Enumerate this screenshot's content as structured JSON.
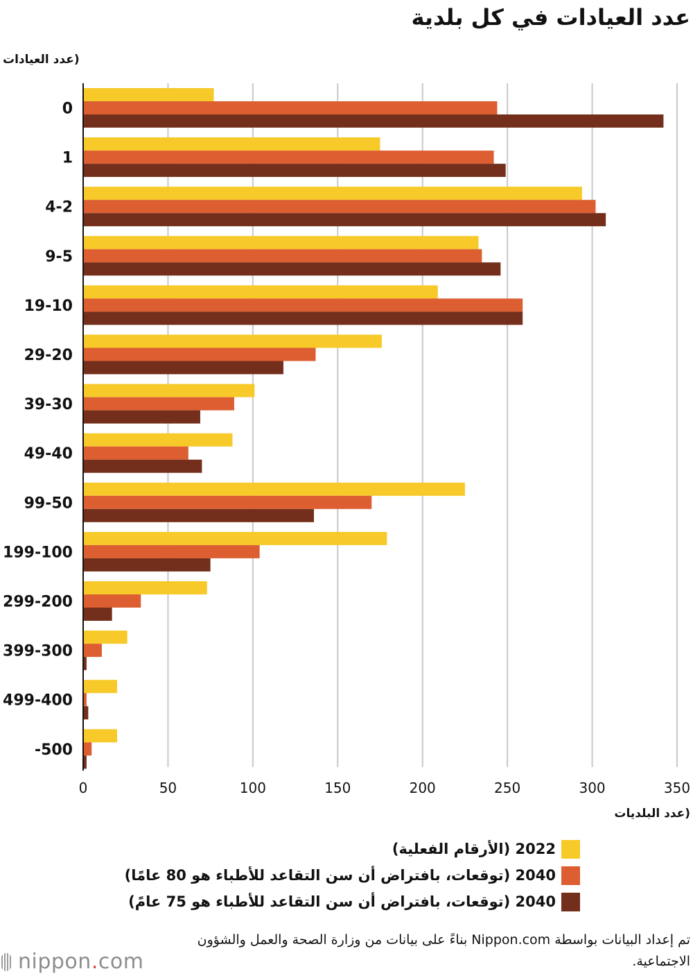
{
  "title": "عدد العيادات في كل بلدية",
  "colors": {
    "series_2022": "#f7c929",
    "series_2040_80": "#dc5e31",
    "series_2040_75": "#732f1b",
    "gridline": "#c8c8c8",
    "axis": "#111111"
  },
  "chart_data": {
    "type": "bar",
    "orientation": "horizontal",
    "title": "عدد العيادات في كل بلدية",
    "ylabel": "(عدد العيادات",
    "xlabel": "(عدد البلديات",
    "categories": [
      "0",
      "1",
      "4-2",
      "9-5",
      "19-10",
      "29-20",
      "39-30",
      "49-40",
      "99-50",
      "199-100",
      "299-200",
      "399-300",
      "499-400",
      "-500"
    ],
    "series": [
      {
        "name": "2022 (الأرقام الفعلية)",
        "color": "#f7c929",
        "values": [
          77,
          175,
          294,
          233,
          209,
          176,
          101,
          88,
          225,
          179,
          73,
          26,
          20,
          20
        ]
      },
      {
        "name": "2040 (توقعات، بافتراض أن سن التقاعد للأطباء هو 80 عامًا)",
        "color": "#dc5e31",
        "values": [
          244,
          242,
          302,
          235,
          259,
          137,
          89,
          62,
          170,
          104,
          34,
          11,
          2,
          5
        ]
      },
      {
        "name": "2040 (توقعات، بافتراض أن سن التقاعد للأطباء هو 75 عامً)",
        "color": "#732f1b",
        "values": [
          342,
          249,
          308,
          246,
          259,
          118,
          69,
          70,
          136,
          75,
          17,
          2,
          3,
          2
        ]
      }
    ],
    "xlim": [
      0,
      350
    ],
    "xticks": [
      0,
      50,
      100,
      150,
      200,
      250,
      300,
      350
    ],
    "grid": true,
    "legend_position": "bottom"
  },
  "legend": [
    {
      "year": "2022",
      "text": "(الأرقام الفعلية)"
    },
    {
      "year": "2040",
      "text": "(توقعات، بافتراض أن سن التقاعد للأطباء هو 80 عامًا)"
    },
    {
      "year": "2040",
      "text": "(توقعات، بافتراض أن سن التقاعد للأطباء هو 75 عامً)"
    }
  ],
  "source": "تم إعداد البيانات بواسطة Nippon.com بناءً على بيانات من وزارة الصحة والعمل والشؤون الاجتماعية.",
  "logo": {
    "name": "nippon",
    "suffix": ".com"
  }
}
